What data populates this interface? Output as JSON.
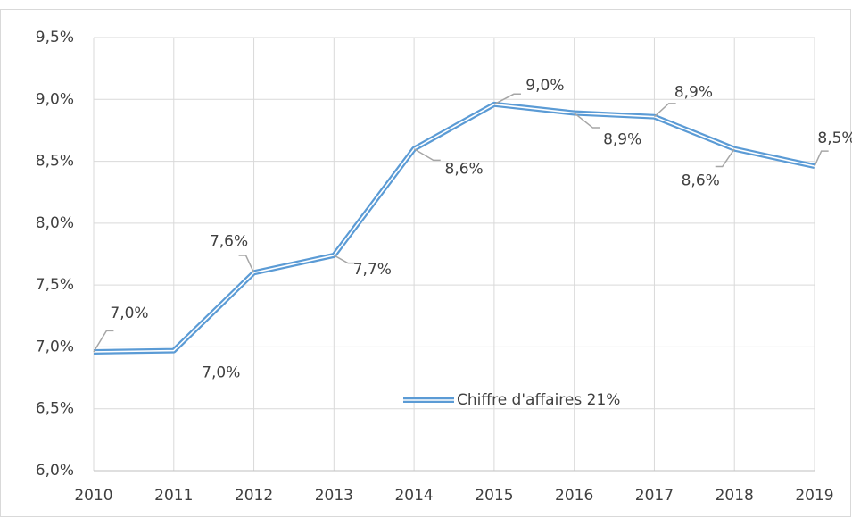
{
  "chart_data": {
    "type": "line",
    "categories": [
      "2010",
      "2011",
      "2012",
      "2013",
      "2014",
      "2015",
      "2016",
      "2017",
      "2018",
      "2019"
    ],
    "series": [
      {
        "name": "Chiffre d'affaires 21%",
        "color": "#5b9bd5",
        "values": [
          6.96,
          6.97,
          7.6,
          7.74,
          8.6,
          8.96,
          8.89,
          8.86,
          8.6,
          8.46
        ],
        "value_labels": [
          "7,0%",
          "7,0%",
          "7,6%",
          "7,7%",
          "8,6%",
          "9,0%",
          "8,9%",
          "8,9%",
          "8,6%",
          "8,5%"
        ]
      }
    ],
    "ylim": [
      6,
      9.5
    ],
    "yticks": [
      {
        "value": 6,
        "label": "6,0%"
      },
      {
        "value": 6.5,
        "label": "6,5%"
      },
      {
        "value": 7,
        "label": "7,0%"
      },
      {
        "value": 7.5,
        "label": "7,5%"
      },
      {
        "value": 8,
        "label": "8,0%"
      },
      {
        "value": 8.5,
        "label": "8,5%"
      },
      {
        "value": 9,
        "label": "9,0%"
      },
      {
        "value": 9.5,
        "label": "9,5%"
      }
    ],
    "grid": true,
    "legend": "inside"
  }
}
